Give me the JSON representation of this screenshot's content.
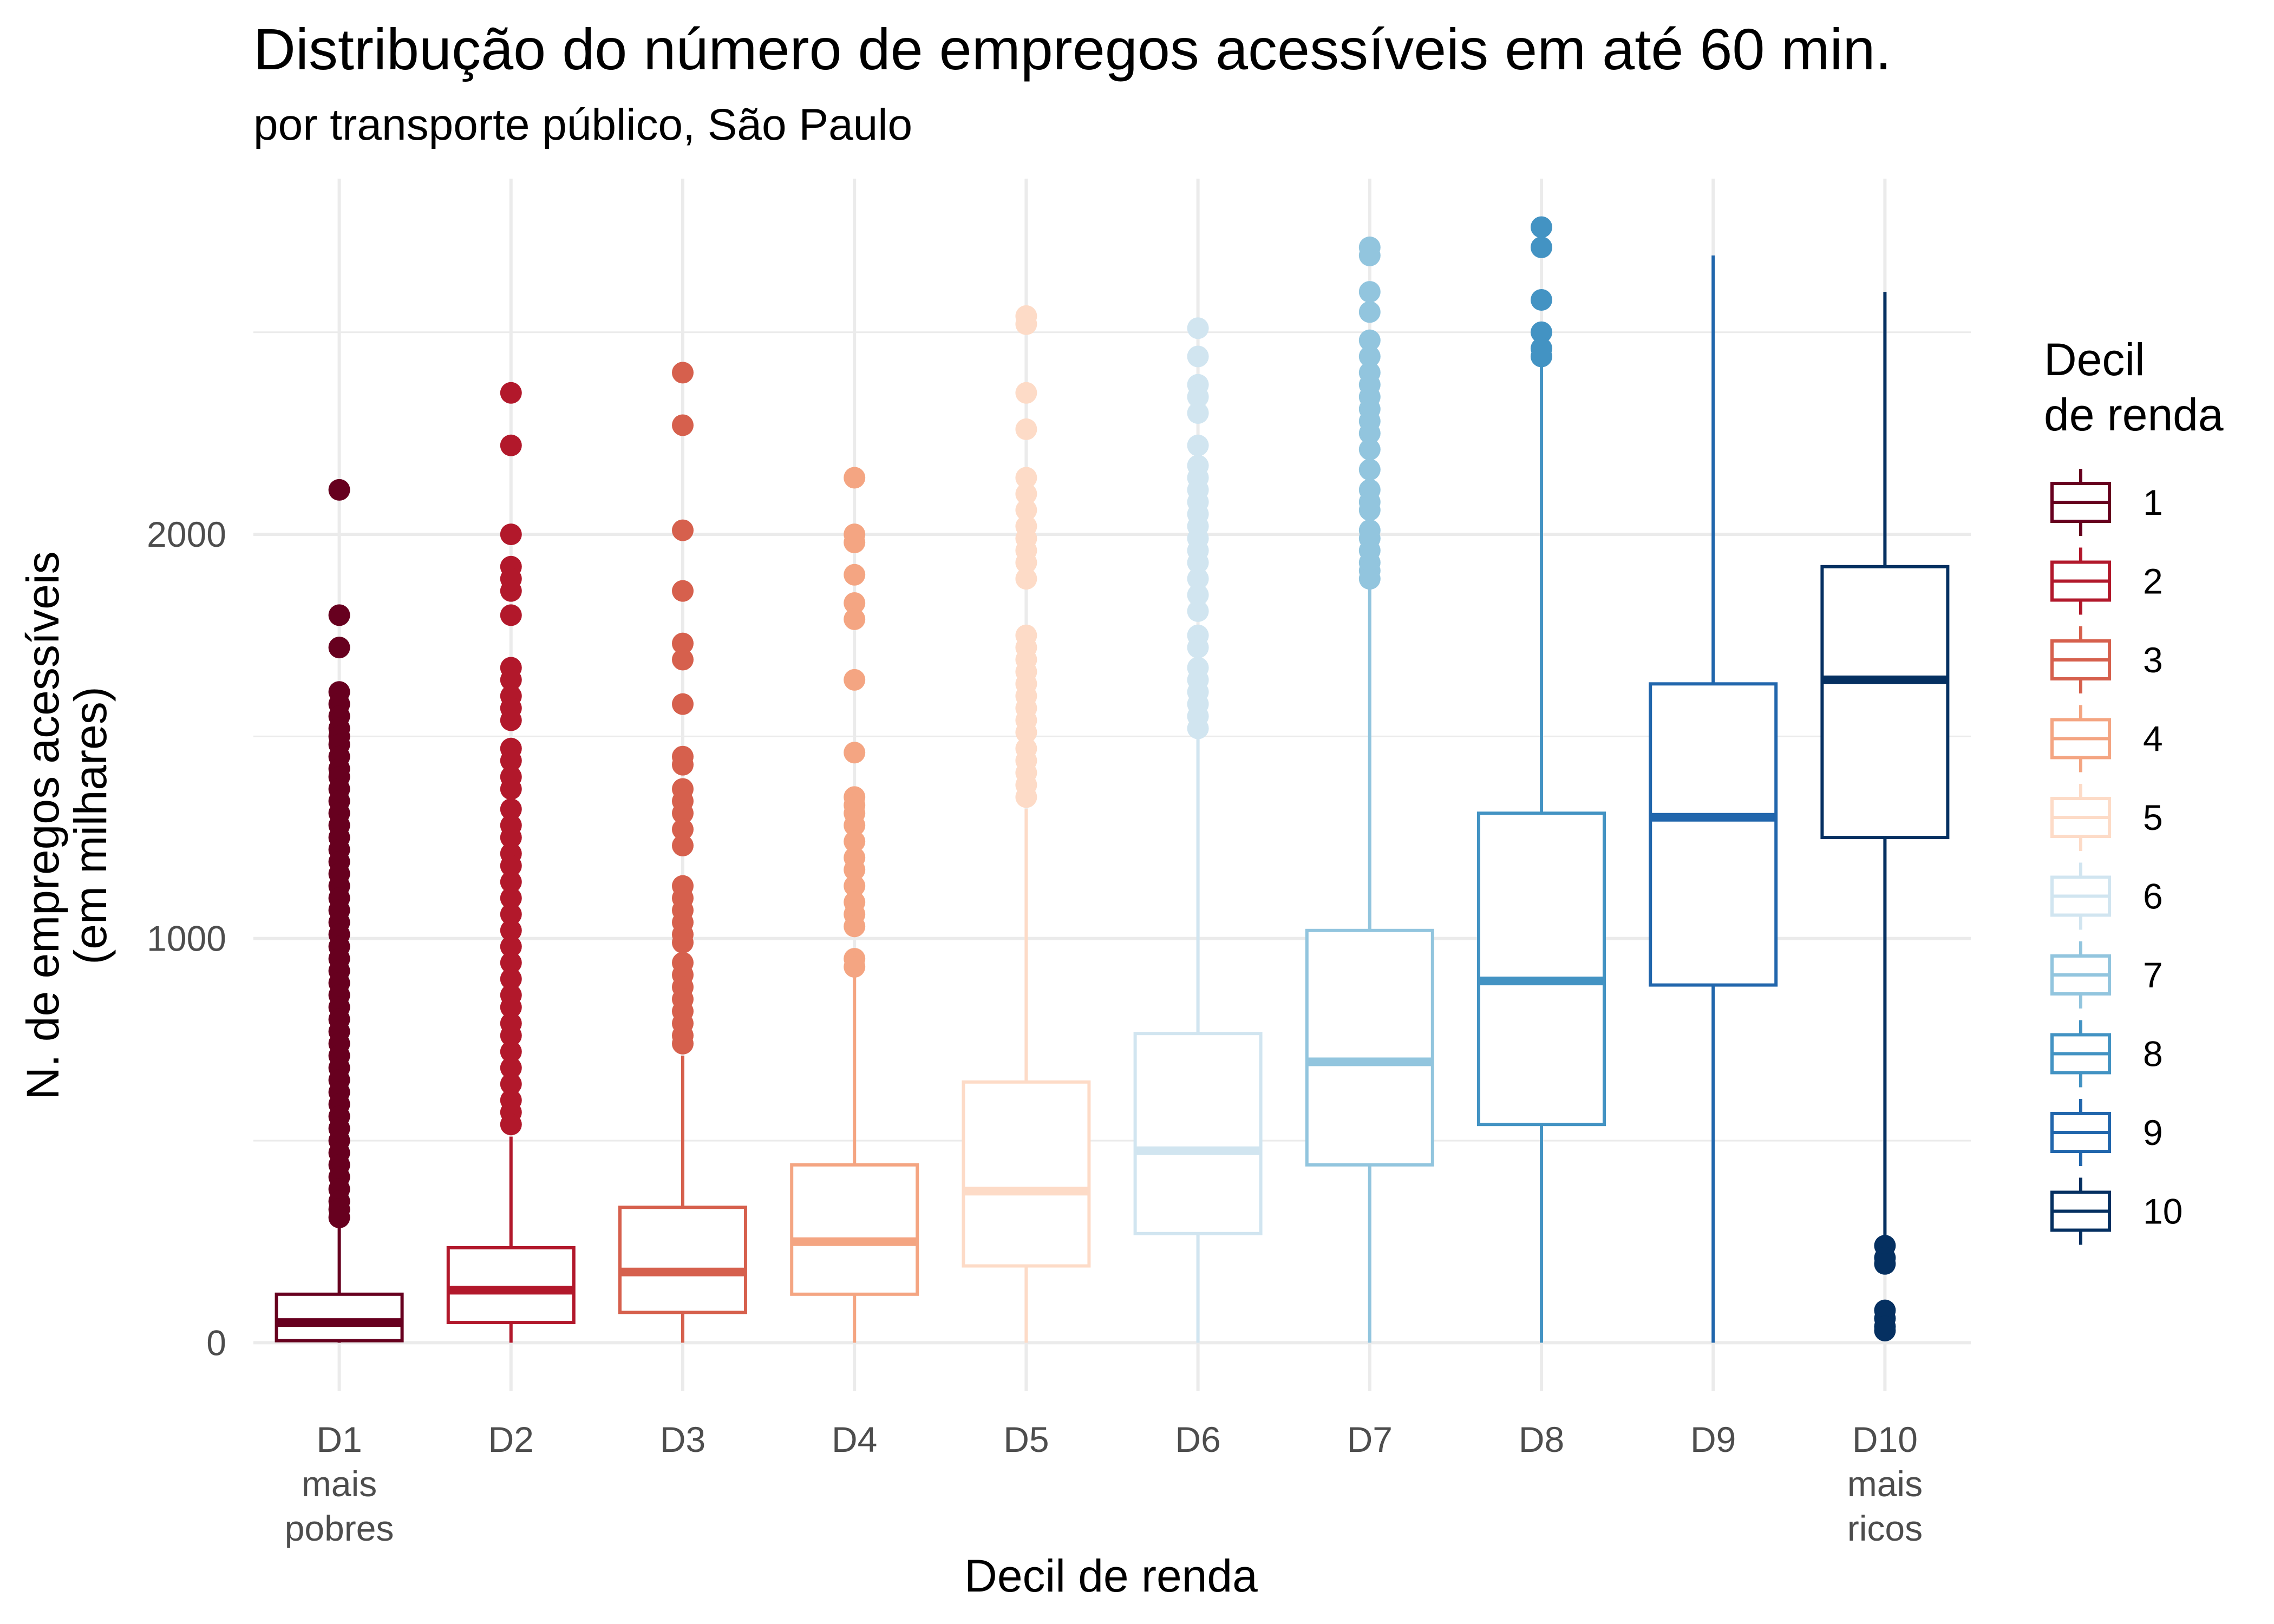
{
  "chart_data": {
    "type": "boxplot",
    "title": "Distribução do número de empregos acessíveis em até 60 min.",
    "subtitle": "por transporte público, São Paulo",
    "xlabel": "Decil de renda",
    "ylabel_lines": [
      "N. de empregos acessíveis",
      "(em milhares)"
    ],
    "ylim": [
      -120,
      2880
    ],
    "yticks": [
      0,
      1000,
      2000
    ],
    "grid": true,
    "legend": {
      "title_lines": [
        "Decil",
        "de renda"
      ],
      "position": "right",
      "entries": [
        "1",
        "2",
        "3",
        "4",
        "5",
        "6",
        "7",
        "8",
        "9",
        "10"
      ]
    },
    "categories": [
      {
        "lines": [
          "D1",
          "mais",
          "pobres"
        ]
      },
      {
        "lines": [
          "D2"
        ]
      },
      {
        "lines": [
          "D3"
        ]
      },
      {
        "lines": [
          "D4"
        ]
      },
      {
        "lines": [
          "D5"
        ]
      },
      {
        "lines": [
          "D6"
        ]
      },
      {
        "lines": [
          "D7"
        ]
      },
      {
        "lines": [
          "D8"
        ]
      },
      {
        "lines": [
          "D9"
        ]
      },
      {
        "lines": [
          "D10",
          "mais",
          "ricos"
        ]
      }
    ],
    "colors": [
      "#67001f",
      "#b2182b",
      "#d6604d",
      "#f4a582",
      "#fddbc7",
      "#d1e5f0",
      "#92c5de",
      "#4393c3",
      "#2166ac",
      "#053061"
    ],
    "boxes": [
      {
        "min": 0,
        "q1": 5,
        "median": 50,
        "q3": 120,
        "max": 290,
        "outliers": [
          2110,
          1800,
          1720,
          1610,
          1580,
          1550,
          1520,
          1500,
          1480,
          1450,
          1420,
          1400,
          1370,
          1340,
          1310,
          1280,
          1250,
          1220,
          1190,
          1160,
          1130,
          1100,
          1070,
          1040,
          1010,
          980,
          950,
          920,
          890,
          860,
          830,
          800,
          770,
          740,
          710,
          680,
          650,
          620,
          590,
          560,
          530,
          500,
          470,
          440,
          410,
          380,
          350,
          330,
          310
        ]
      },
      {
        "min": 0,
        "q1": 50,
        "median": 130,
        "q3": 235,
        "max": 510,
        "outliers": [
          2350,
          2220,
          2000,
          1920,
          1890,
          1860,
          1800,
          1670,
          1640,
          1600,
          1570,
          1540,
          1470,
          1440,
          1400,
          1370,
          1320,
          1280,
          1250,
          1210,
          1180,
          1140,
          1100,
          1060,
          1020,
          980,
          940,
          900,
          860,
          830,
          790,
          760,
          720,
          680,
          640,
          600,
          570,
          540
        ]
      },
      {
        "min": 0,
        "q1": 75,
        "median": 175,
        "q3": 335,
        "max": 710,
        "outliers": [
          2400,
          2270,
          2010,
          1860,
          1730,
          1690,
          1580,
          1450,
          1430,
          1370,
          1340,
          1310,
          1270,
          1230,
          1130,
          1100,
          1070,
          1040,
          1010,
          990,
          940,
          910,
          880,
          850,
          820,
          790,
          760,
          740
        ]
      },
      {
        "min": 0,
        "q1": 120,
        "median": 250,
        "q3": 440,
        "max": 920,
        "outliers": [
          2140,
          2000,
          1980,
          1900,
          1830,
          1790,
          1640,
          1460,
          1350,
          1330,
          1310,
          1280,
          1240,
          1200,
          1170,
          1130,
          1090,
          1060,
          1030,
          950,
          930
        ]
      },
      {
        "min": 0,
        "q1": 190,
        "median": 375,
        "q3": 645,
        "max": 1320,
        "outliers": [
          2540,
          2520,
          2350,
          2260,
          2140,
          2100,
          2060,
          2020,
          1990,
          1960,
          1930,
          1890,
          1750,
          1720,
          1690,
          1660,
          1630,
          1600,
          1570,
          1540,
          1510,
          1470,
          1440,
          1410,
          1380,
          1350
        ]
      },
      {
        "min": 0,
        "q1": 270,
        "median": 475,
        "q3": 765,
        "max": 1500,
        "outliers": [
          2510,
          2440,
          2370,
          2340,
          2300,
          2220,
          2170,
          2140,
          2110,
          2080,
          2050,
          2020,
          1990,
          1960,
          1930,
          1890,
          1850,
          1810,
          1750,
          1720,
          1670,
          1640,
          1610,
          1580,
          1550,
          1520
        ]
      },
      {
        "min": 0,
        "q1": 440,
        "median": 695,
        "q3": 1020,
        "max": 1870,
        "outliers": [
          2710,
          2690,
          2600,
          2550,
          2480,
          2440,
          2400,
          2370,
          2340,
          2310,
          2280,
          2250,
          2210,
          2160,
          2110,
          2080,
          2060,
          2010,
          1990,
          1960,
          1930,
          1910,
          1890
        ]
      },
      {
        "min": 0,
        "q1": 540,
        "median": 895,
        "q3": 1310,
        "max": 2430,
        "outliers": [
          2760,
          2710,
          2580,
          2500,
          2460,
          2440
        ]
      },
      {
        "min": 0,
        "q1": 885,
        "median": 1300,
        "q3": 1630,
        "max": 2690,
        "outliers": []
      },
      {
        "min": 240,
        "q1": 1250,
        "median": 1640,
        "q3": 1920,
        "max": 2600,
        "outliers": [
          240,
          210,
          195,
          80,
          60,
          40,
          30
        ]
      }
    ]
  }
}
